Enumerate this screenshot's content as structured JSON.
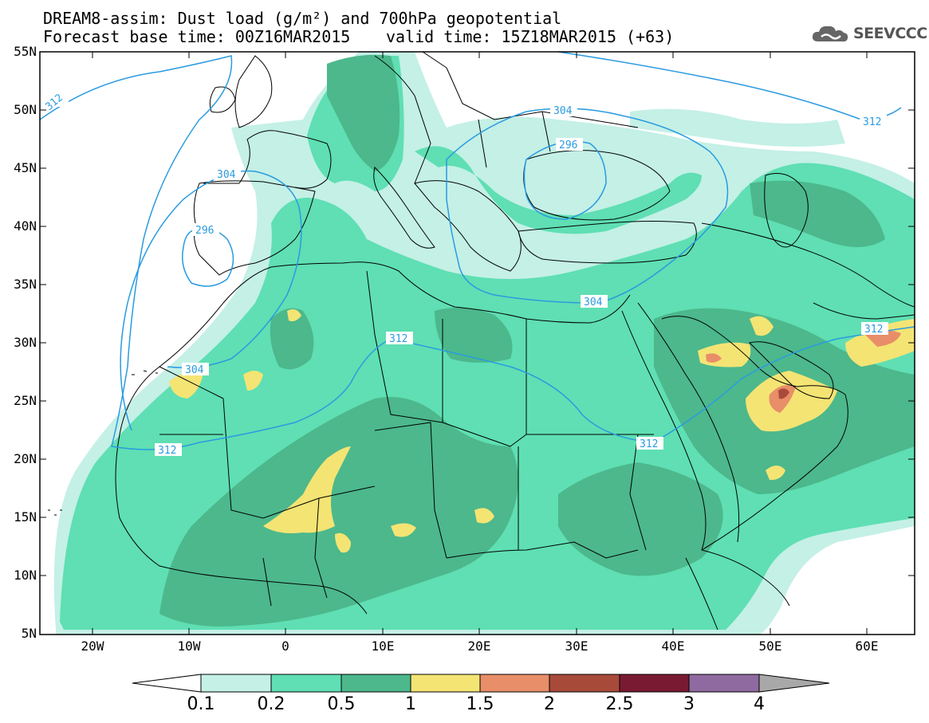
{
  "header": {
    "title_line1": "DREAM8-assim: Dust load (g/m²) and 700hPa geopotential",
    "title_line2": "Forecast base time: 00Z16MAR2015",
    "valid_time": "valid time: 15Z18MAR2015 (+63)",
    "logo_text": "SEEVCCC",
    "logo_icon": "cloud-icon"
  },
  "axes": {
    "lat_labels": [
      "55N",
      "50N",
      "45N",
      "40N",
      "35N",
      "30N",
      "25N",
      "20N",
      "15N",
      "10N",
      "5N"
    ],
    "lon_labels": [
      "20W",
      "10W",
      "0",
      "10E",
      "20E",
      "30E",
      "40E",
      "50E",
      "60E"
    ]
  },
  "colorbar": {
    "labels": [
      "0.1",
      "0.2",
      "0.5",
      "1",
      "1.5",
      "2",
      "2.5",
      "3",
      "4"
    ],
    "colors": [
      "#c4f0e6",
      "#5fdfb3",
      "#4cb88c",
      "#f4e474",
      "#e88e68",
      "#a84a3a",
      "#7a1a32",
      "#8e6aa0",
      "#a8a8a8"
    ]
  },
  "contours": {
    "labels": [
      "312",
      "304",
      "304",
      "296",
      "304",
      "296",
      "312",
      "304",
      "312",
      "312",
      "312",
      "312"
    ]
  },
  "colors": {
    "contour": "#2a9be0",
    "border": "#000000",
    "dust_levels": {
      "0.1": "#c4f0e6",
      "0.2": "#5fdfb3",
      "0.5": "#4cb88c",
      "1": "#f4e474",
      "1.5": "#e88e68",
      "2": "#a84a3a"
    }
  }
}
